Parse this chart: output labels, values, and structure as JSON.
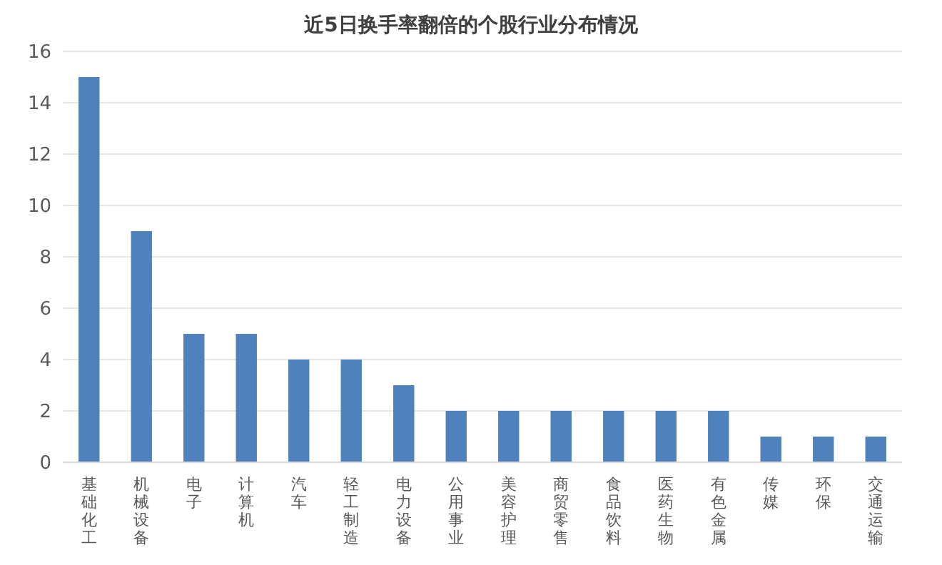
{
  "chart_data": {
    "type": "bar",
    "title": "近5日换手率翻倍的个股行业分布情况",
    "categories": [
      "基础化工",
      "机械设备",
      "电子",
      "计算机",
      "汽车",
      "轻工制造",
      "电力设备",
      "公用事业",
      "美容护理",
      "商贸零售",
      "食品饮料",
      "医药生物",
      "有色金属",
      "传媒",
      "环保",
      "交通运输"
    ],
    "values": [
      15,
      9,
      5,
      5,
      4,
      4,
      3,
      2,
      2,
      2,
      2,
      2,
      2,
      1,
      1,
      1
    ],
    "color": "#4f81bd",
    "ylim": [
      0,
      16
    ],
    "yticks": [
      0,
      2,
      4,
      6,
      8,
      10,
      12,
      14,
      16
    ],
    "grid": "y"
  }
}
